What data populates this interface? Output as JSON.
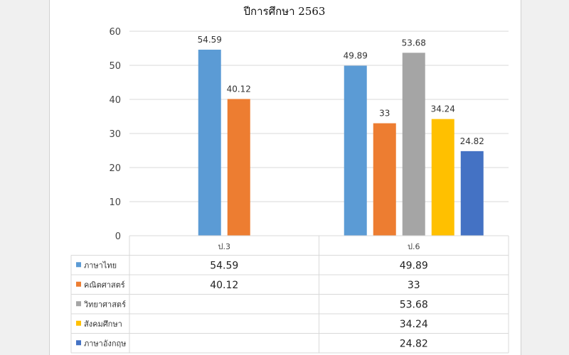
{
  "chart_data": {
    "type": "bar",
    "title": "ปีการศึกษา 2563",
    "categories": [
      "ป.3",
      "ป.6"
    ],
    "series": [
      {
        "name": "ภาษาไทย",
        "color": "#5b9bd5",
        "values": [
          54.59,
          49.89
        ],
        "labels": [
          "54.59",
          "49.89"
        ]
      },
      {
        "name": "คณิตศาสตร์",
        "color": "#ed7d31",
        "values": [
          40.12,
          33
        ],
        "labels": [
          "40.12",
          "33"
        ]
      },
      {
        "name": "วิทยาศาสตร์",
        "color": "#a5a5a5",
        "values": [
          null,
          53.68
        ],
        "labels": [
          "",
          "53.68"
        ]
      },
      {
        "name": "สังคมศึกษา",
        "color": "#ffc000",
        "values": [
          null,
          34.24
        ],
        "labels": [
          "",
          "34.24"
        ]
      },
      {
        "name": "ภาษาอังกฤษ",
        "color": "#4472c4",
        "values": [
          null,
          24.82
        ],
        "labels": [
          "",
          "24.82"
        ]
      }
    ],
    "ylim": [
      0,
      60
    ],
    "yticks": [
      0,
      10,
      20,
      30,
      40,
      50,
      60
    ],
    "grid": true,
    "legend": "data-table",
    "data_table": true
  }
}
